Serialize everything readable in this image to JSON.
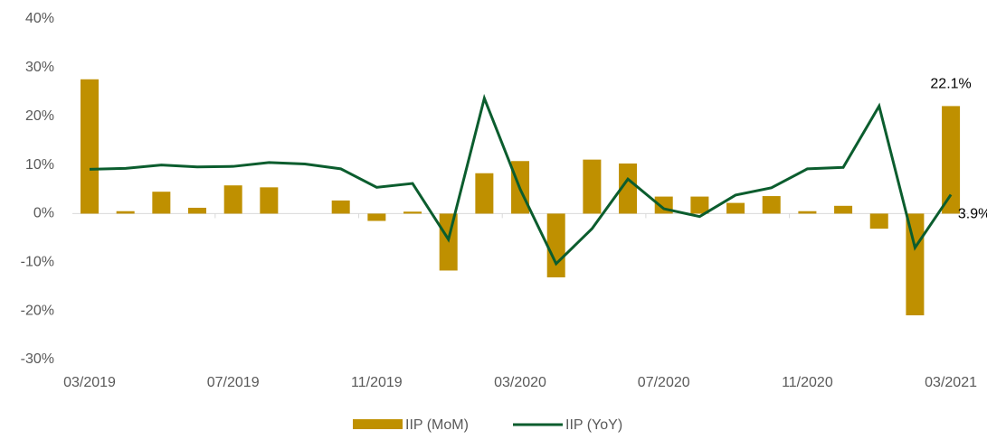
{
  "chart_data": {
    "type": "bar-line",
    "categories": [
      "03/2019",
      null,
      null,
      null,
      "07/2019",
      null,
      null,
      null,
      "11/2019",
      null,
      null,
      null,
      "03/2020",
      null,
      null,
      null,
      "07/2020",
      null,
      null,
      null,
      "11/2020",
      null,
      null,
      null,
      "03/2021"
    ],
    "series": [
      {
        "name": "IIP (MoM)",
        "type": "bar",
        "color": "#bf9000",
        "values": [
          27.6,
          0.5,
          4.5,
          1.2,
          5.8,
          5.4,
          0,
          2.7,
          -1.5,
          0.4,
          -11.7,
          8.3,
          10.8,
          -13.1,
          11.1,
          10.3,
          3.5,
          3.5,
          2.2,
          3.6,
          0.5,
          1.6,
          -3.1,
          -20.9,
          22.1
        ],
        "value_labels": [
          null,
          null,
          null,
          null,
          null,
          null,
          null,
          null,
          null,
          null,
          null,
          null,
          null,
          null,
          null,
          null,
          null,
          null,
          null,
          null,
          null,
          null,
          null,
          null,
          "22.1%"
        ]
      },
      {
        "name": "IIP (YoY)",
        "type": "line",
        "color": "#0b5d2e",
        "values": [
          9.1,
          9.3,
          10.0,
          9.6,
          9.7,
          10.5,
          10.2,
          9.2,
          5.4,
          6.2,
          -5.3,
          23.7,
          5.0,
          -10.3,
          -3.1,
          7.1,
          1.0,
          -0.6,
          3.8,
          5.3,
          9.2,
          9.5,
          22.1,
          -7.0,
          3.9
        ],
        "value_labels": [
          null,
          null,
          null,
          null,
          null,
          null,
          null,
          null,
          null,
          null,
          null,
          null,
          null,
          null,
          null,
          null,
          null,
          null,
          null,
          null,
          null,
          null,
          null,
          null,
          "3.9%"
        ]
      }
    ],
    "ylim": [
      -30,
      40
    ],
    "yticks": [
      {
        "value": -30,
        "label": "-30%"
      },
      {
        "value": -20,
        "label": "-20%"
      },
      {
        "value": -10,
        "label": "-10%"
      },
      {
        "value": 0,
        "label": "0%"
      },
      {
        "value": 10,
        "label": "10%"
      },
      {
        "value": 20,
        "label": "20%"
      },
      {
        "value": 30,
        "label": "30%"
      },
      {
        "value": 40,
        "label": "40%"
      }
    ],
    "grid": false,
    "legend": "bottom"
  }
}
